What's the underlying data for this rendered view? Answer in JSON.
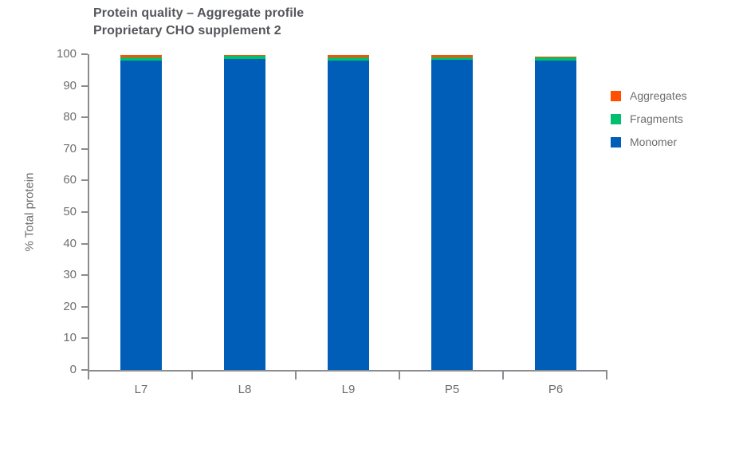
{
  "chart": {
    "title_line1": "Protein quality – Aggregate profile",
    "title_line2": "Proprietary CHO supplement 2",
    "ylabel": "% Total protein"
  },
  "chart_data": {
    "type": "bar",
    "stacked": true,
    "title": "Protein quality – Aggregate profile",
    "subtitle": "Proprietary CHO supplement 2",
    "xlabel": "",
    "ylabel": "% Total protein",
    "ylim": [
      0,
      100
    ],
    "yticks": [
      0,
      10,
      20,
      30,
      40,
      50,
      60,
      70,
      80,
      90,
      100
    ],
    "categories": [
      "L7",
      "L8",
      "L9",
      "P5",
      "P6"
    ],
    "series": [
      {
        "name": "Monomer",
        "color": "#005EB8",
        "values": [
          98.0,
          98.6,
          98.1,
          98.2,
          98.0
        ]
      },
      {
        "name": "Fragments",
        "color": "#00BF6F",
        "values": [
          1.0,
          1.0,
          0.9,
          0.8,
          1.0
        ]
      },
      {
        "name": "Aggregates",
        "color": "#FE5000",
        "values": [
          0.8,
          0.15,
          0.8,
          0.7,
          0.15
        ]
      }
    ],
    "legend": {
      "position": "right",
      "order": [
        "Aggregates",
        "Fragments",
        "Monomer"
      ]
    },
    "grid": false
  },
  "colors": {
    "title": "#54565B",
    "axis_line": "#8A8C8F",
    "tick_label": "#6D6E71",
    "background": "#FFFFFF"
  }
}
